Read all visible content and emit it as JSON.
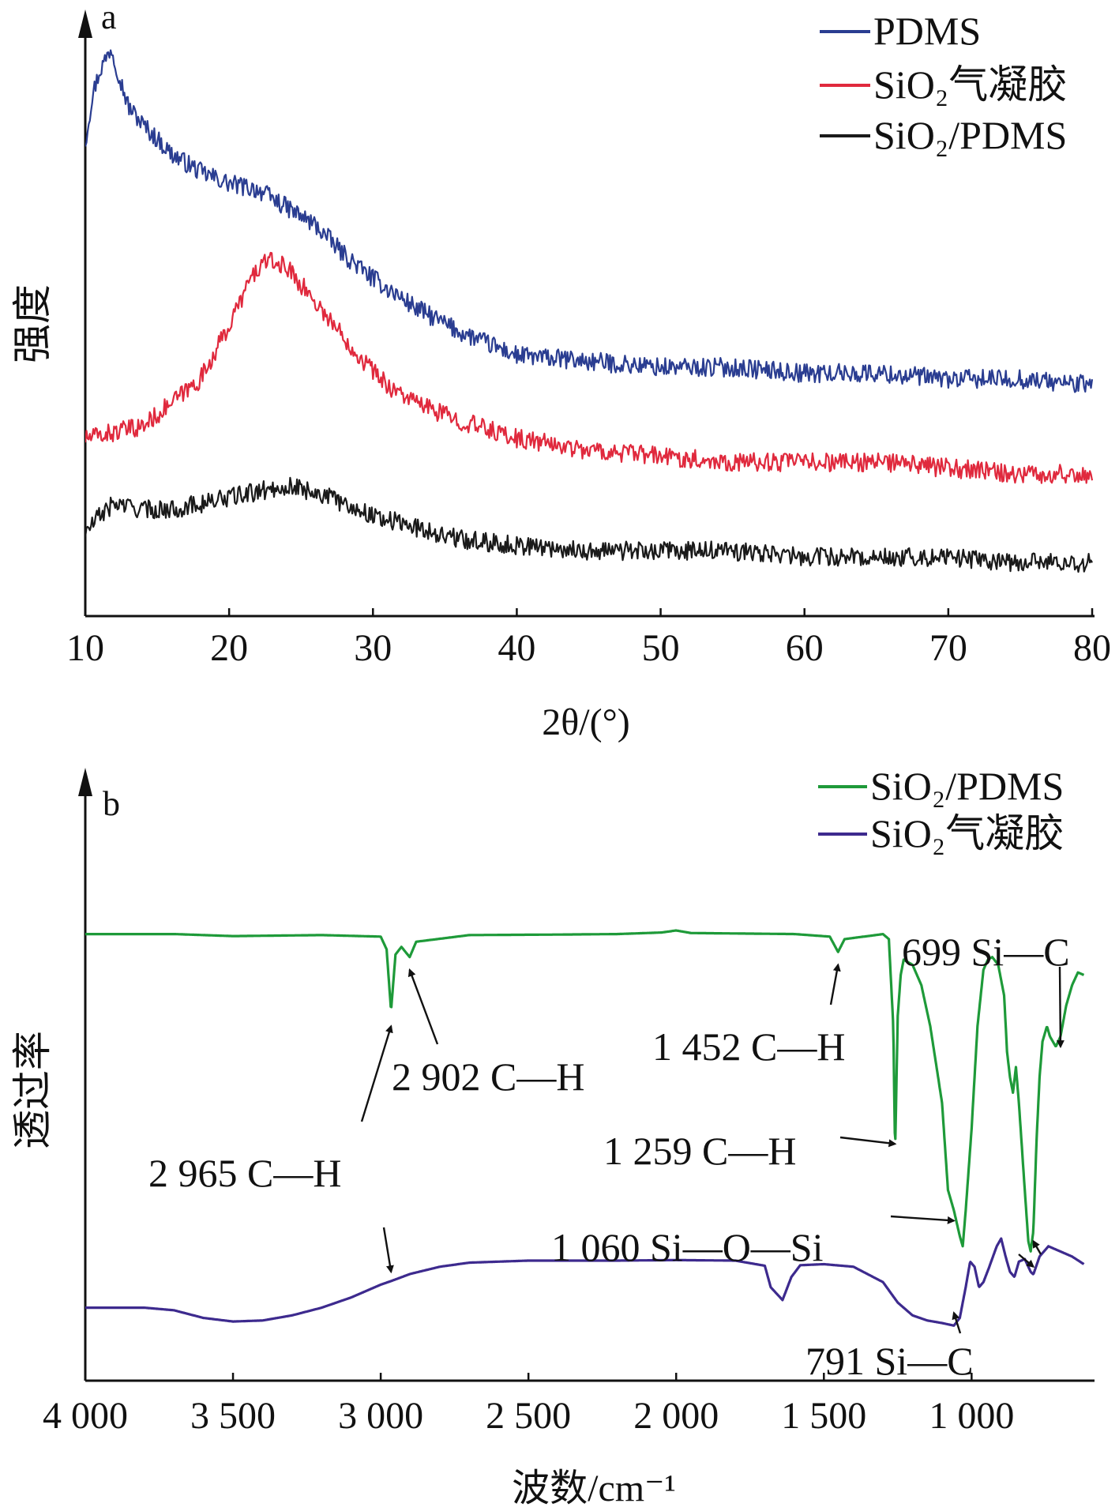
{
  "chart_data": [
    {
      "type": "line",
      "panel_label": "a",
      "xlabel": "2θ/(°)",
      "ylabel": "强度",
      "xlim": [
        10,
        80
      ],
      "xticks": [
        "10",
        "20",
        "30",
        "40",
        "50",
        "60",
        "70",
        "80"
      ],
      "ylim": [
        0,
        100
      ],
      "y_ticks_shown": false,
      "grid": false,
      "legend": "top-right",
      "noise": 1.6,
      "series": [
        {
          "name": "PDMS",
          "color": "#2a3d91",
          "points": [
            [
              10,
              80
            ],
            [
              10.5,
              88
            ],
            [
              11,
              92
            ],
            [
              11.8,
              96
            ],
            [
              12.5,
              90
            ],
            [
              13,
              86
            ],
            [
              14,
              83
            ],
            [
              16,
              78
            ],
            [
              18,
              75
            ],
            [
              20,
              73
            ],
            [
              22,
              72
            ],
            [
              24,
              69
            ],
            [
              26,
              66
            ],
            [
              28,
              61
            ],
            [
              30,
              57
            ],
            [
              33,
              52
            ],
            [
              36,
              48
            ],
            [
              38,
              46
            ],
            [
              40,
              44
            ],
            [
              45,
              43
            ],
            [
              50,
              42
            ],
            [
              55,
              42
            ],
            [
              60,
              41
            ],
            [
              65,
              41
            ],
            [
              70,
              40
            ],
            [
              75,
              40
            ],
            [
              80,
              39
            ]
          ]
        },
        {
          "name": "SiO₂气凝胶",
          "color": "#e0293d",
          "points": [
            [
              10,
              30
            ],
            [
              12,
              31
            ],
            [
              14,
              32
            ],
            [
              16,
              36
            ],
            [
              18,
              40
            ],
            [
              20,
              49
            ],
            [
              21.5,
              57
            ],
            [
              22.5,
              60
            ],
            [
              24,
              59
            ],
            [
              25,
              56
            ],
            [
              27,
              50
            ],
            [
              29,
              44
            ],
            [
              31,
              39
            ],
            [
              33,
              36
            ],
            [
              36,
              33
            ],
            [
              40,
              30
            ],
            [
              45,
              28
            ],
            [
              50,
              27
            ],
            [
              55,
              26
            ],
            [
              60,
              26
            ],
            [
              65,
              26
            ],
            [
              70,
              25
            ],
            [
              75,
              24
            ],
            [
              80,
              24
            ]
          ]
        },
        {
          "name": "SiO₂/PDMS",
          "color": "#1a1a1a",
          "points": [
            [
              10,
              14
            ],
            [
              11,
              17
            ],
            [
              12,
              19
            ],
            [
              14,
              18
            ],
            [
              16,
              18
            ],
            [
              18,
              19
            ],
            [
              20,
              20
            ],
            [
              22,
              21
            ],
            [
              24,
              22
            ],
            [
              26,
              21
            ],
            [
              28,
              19
            ],
            [
              30,
              17
            ],
            [
              33,
              15
            ],
            [
              36,
              13
            ],
            [
              40,
              12
            ],
            [
              45,
              11
            ],
            [
              50,
              11
            ],
            [
              55,
              11
            ],
            [
              60,
              10
            ],
            [
              65,
              10
            ],
            [
              70,
              10
            ],
            [
              75,
              9
            ],
            [
              80,
              9
            ]
          ]
        }
      ]
    },
    {
      "type": "line",
      "panel_label": "b",
      "xlabel": "波数/cm⁻¹",
      "ylabel": "透过率",
      "xlim": [
        4000,
        600
      ],
      "xticks": [
        "4 000",
        "3 500",
        "3 000",
        "2 500",
        "2 000",
        "1 500",
        "1 000"
      ],
      "ylim": [
        0,
        100
      ],
      "y_ticks_shown": false,
      "grid": false,
      "legend": "top-right",
      "series": [
        {
          "name": "SiO₂/PDMS",
          "color": "#1e9a39",
          "points": [
            [
              4000,
              78
            ],
            [
              3700,
              78
            ],
            [
              3500,
              77.6
            ],
            [
              3200,
              77.8
            ],
            [
              3000,
              77.5
            ],
            [
              2980,
              75
            ],
            [
              2965,
              63
            ],
            [
              2950,
              74
            ],
            [
              2930,
              75.5
            ],
            [
              2902,
              73.5
            ],
            [
              2880,
              76.5
            ],
            [
              2700,
              77.8
            ],
            [
              2400,
              77.9
            ],
            [
              2200,
              78
            ],
            [
              2050,
              78.3
            ],
            [
              2000,
              78.7
            ],
            [
              1950,
              78.2
            ],
            [
              1600,
              78
            ],
            [
              1480,
              77.5
            ],
            [
              1452,
              74.5
            ],
            [
              1430,
              77
            ],
            [
              1300,
              78
            ],
            [
              1280,
              77
            ],
            [
              1265,
              60
            ],
            [
              1259,
              35
            ],
            [
              1250,
              62
            ],
            [
              1240,
              70
            ],
            [
              1230,
              73
            ],
            [
              1200,
              72
            ],
            [
              1170,
              68
            ],
            [
              1140,
              60
            ],
            [
              1100,
              45
            ],
            [
              1080,
              28
            ],
            [
              1060,
              24
            ],
            [
              1040,
              19
            ],
            [
              1030,
              17
            ],
            [
              1020,
              24
            ],
            [
              1000,
              40
            ],
            [
              980,
              60
            ],
            [
              960,
              71
            ],
            [
              945,
              73
            ],
            [
              930,
              73.5
            ],
            [
              910,
              72
            ],
            [
              890,
              66
            ],
            [
              880,
              55
            ],
            [
              870,
              50
            ],
            [
              860,
              47
            ],
            [
              850,
              52
            ],
            [
              840,
              45
            ],
            [
              820,
              28
            ],
            [
              808,
              18
            ],
            [
              800,
              16
            ],
            [
              791,
              20
            ],
            [
              780,
              38
            ],
            [
              770,
              50
            ],
            [
              760,
              57
            ],
            [
              745,
              60
            ],
            [
              735,
              58
            ],
            [
              715,
              56
            ],
            [
              699,
              58
            ],
            [
              680,
              64
            ],
            [
              660,
              68
            ],
            [
              640,
              70.5
            ],
            [
              620,
              70
            ]
          ]
        },
        {
          "name": "SiO₂气凝胶",
          "color": "#3d2a8e",
          "points": [
            [
              4000,
              5
            ],
            [
              3800,
              5
            ],
            [
              3700,
              4.5
            ],
            [
              3600,
              3
            ],
            [
              3500,
              2.3
            ],
            [
              3400,
              2.5
            ],
            [
              3300,
              3.5
            ],
            [
              3200,
              5
            ],
            [
              3100,
              7
            ],
            [
              3000,
              9.5
            ],
            [
              2965,
              10.2
            ],
            [
              2900,
              11.6
            ],
            [
              2800,
              13
            ],
            [
              2700,
              13.8
            ],
            [
              2500,
              14.2
            ],
            [
              2200,
              14.2
            ],
            [
              2000,
              14.3
            ],
            [
              1800,
              14.2
            ],
            [
              1700,
              13.2
            ],
            [
              1680,
              9
            ],
            [
              1640,
              6.5
            ],
            [
              1610,
              11
            ],
            [
              1580,
              13.3
            ],
            [
              1500,
              13.5
            ],
            [
              1400,
              13
            ],
            [
              1300,
              10
            ],
            [
              1250,
              6
            ],
            [
              1200,
              3.5
            ],
            [
              1150,
              2.5
            ],
            [
              1100,
              2
            ],
            [
              1060,
              1.5
            ],
            [
              1040,
              3
            ],
            [
              1020,
              9
            ],
            [
              1005,
              14
            ],
            [
              990,
              13
            ],
            [
              975,
              9
            ],
            [
              960,
              10
            ],
            [
              940,
              13
            ],
            [
              915,
              17
            ],
            [
              900,
              18.5
            ],
            [
              885,
              15
            ],
            [
              870,
              12
            ],
            [
              855,
              11
            ],
            [
              840,
              14
            ],
            [
              820,
              14.5
            ],
            [
              800,
              12
            ],
            [
              791,
              11.5
            ],
            [
              770,
              15
            ],
            [
              740,
              17
            ],
            [
              700,
              16
            ],
            [
              660,
              15
            ],
            [
              620,
              13.5
            ]
          ]
        }
      ],
      "annotations": [
        {
          "text": "2 965 C—H",
          "target": [
            2965,
            60
          ]
        },
        {
          "text": "2 965 C—H",
          "target": [
            2965,
            12
          ]
        },
        {
          "text": "2 902 C—H",
          "target": [
            2902,
            71
          ]
        },
        {
          "text": "1 452 C—H",
          "target": [
            1452,
            72
          ]
        },
        {
          "text": "1 259 C—H",
          "target": [
            1259,
            37
          ]
        },
        {
          "text": "1 060 Si—O—Si",
          "target": [
            1060,
            22
          ]
        },
        {
          "text": "1 060 Si—O—Si",
          "target": [
            1060,
            4
          ]
        },
        {
          "text": "699 Si—C",
          "target": [
            699,
            56
          ]
        },
        {
          "text": "791 Si—C",
          "target": [
            791,
            18
          ]
        },
        {
          "text": "791 Si—C",
          "target": [
            791,
            13
          ]
        }
      ]
    }
  ]
}
